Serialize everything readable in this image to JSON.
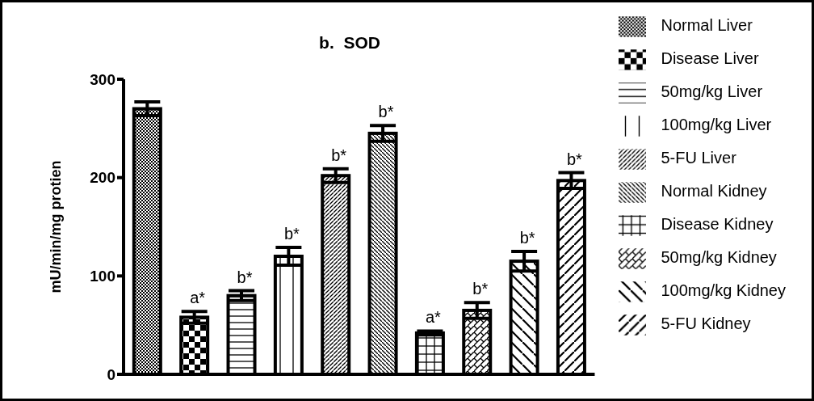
{
  "chart_data": {
    "type": "bar",
    "title": "b.  SOD",
    "ylabel": "mU/min/mg protien",
    "categories": [
      null,
      null,
      null,
      null,
      null,
      null,
      null,
      null,
      null,
      null
    ],
    "stacked": true,
    "ylim": [
      0,
      300
    ],
    "yticks": [
      0,
      100,
      200,
      300
    ],
    "grid": false,
    "legend": "right",
    "series": [
      {
        "name": "Normal Liver",
        "color": "#000000",
        "values": [
          270,
          null,
          null,
          null,
          null,
          null,
          null,
          null,
          null,
          null
        ],
        "errors": [
          7,
          null,
          null,
          null,
          null,
          null,
          null,
          null,
          null,
          null
        ],
        "value_labels": [
          null,
          null,
          null,
          null,
          null,
          null,
          null,
          null,
          null,
          null
        ]
      },
      {
        "name": "Disease Liver",
        "color": "#000000",
        "values": [
          null,
          58,
          null,
          null,
          null,
          null,
          null,
          null,
          null,
          null
        ],
        "errors": [
          null,
          6,
          null,
          null,
          null,
          null,
          null,
          null,
          null,
          null
        ],
        "value_labels": [
          null,
          "a*",
          null,
          null,
          null,
          null,
          null,
          null,
          null,
          null
        ]
      },
      {
        "name": "50mg/kg Liver",
        "color": "#000000",
        "values": [
          null,
          null,
          80,
          null,
          null,
          null,
          null,
          null,
          null,
          null
        ],
        "errors": [
          null,
          null,
          5,
          null,
          null,
          null,
          null,
          null,
          null,
          null
        ],
        "value_labels": [
          null,
          null,
          "b*",
          null,
          null,
          null,
          null,
          null,
          null,
          null
        ]
      },
      {
        "name": "100mg/kg Liver",
        "color": "#000000",
        "values": [
          null,
          null,
          null,
          120,
          null,
          null,
          null,
          null,
          null,
          null
        ],
        "errors": [
          null,
          null,
          null,
          9,
          null,
          null,
          null,
          null,
          null,
          null
        ],
        "value_labels": [
          null,
          null,
          null,
          "b*",
          null,
          null,
          null,
          null,
          null,
          null
        ]
      },
      {
        "name": "5-FU Liver",
        "color": "#000000",
        "values": [
          null,
          null,
          null,
          null,
          202,
          null,
          null,
          null,
          null,
          null
        ],
        "errors": [
          null,
          null,
          null,
          null,
          7,
          null,
          null,
          null,
          null,
          null
        ],
        "value_labels": [
          null,
          null,
          null,
          null,
          "b*",
          null,
          null,
          null,
          null,
          null
        ]
      },
      {
        "name": "Normal Kidney",
        "color": "#000000",
        "values": [
          null,
          null,
          null,
          null,
          null,
          245,
          null,
          null,
          null,
          null
        ],
        "errors": [
          null,
          null,
          null,
          null,
          null,
          8,
          null,
          null,
          null,
          null
        ],
        "value_labels": [
          null,
          null,
          null,
          null,
          null,
          "b*",
          null,
          null,
          null,
          null
        ]
      },
      {
        "name": "Disease Kidney",
        "color": "#000000",
        "values": [
          null,
          null,
          null,
          null,
          null,
          null,
          42,
          null,
          null,
          null
        ],
        "errors": [
          null,
          null,
          null,
          null,
          null,
          null,
          2,
          null,
          null,
          null
        ],
        "value_labels": [
          null,
          null,
          null,
          null,
          null,
          null,
          "a*",
          null,
          null,
          null
        ]
      },
      {
        "name": "50mg/kg Kidney",
        "color": "#000000",
        "values": [
          null,
          null,
          null,
          null,
          null,
          null,
          null,
          65,
          null,
          null
        ],
        "errors": [
          null,
          null,
          null,
          null,
          null,
          null,
          null,
          8,
          null,
          null
        ],
        "value_labels": [
          null,
          null,
          null,
          null,
          null,
          null,
          null,
          "b*",
          null,
          null
        ]
      },
      {
        "name": "100mg/kg Kidney",
        "color": "#000000",
        "values": [
          null,
          null,
          null,
          null,
          null,
          null,
          null,
          null,
          115,
          null
        ],
        "errors": [
          null,
          null,
          null,
          null,
          null,
          null,
          null,
          null,
          10,
          null
        ],
        "value_labels": [
          null,
          null,
          null,
          null,
          null,
          null,
          null,
          null,
          "b*",
          null
        ]
      },
      {
        "name": "5-FU Kidney",
        "color": "#000000",
        "values": [
          null,
          null,
          null,
          null,
          null,
          null,
          null,
          null,
          null,
          197
        ],
        "errors": [
          null,
          null,
          null,
          null,
          null,
          null,
          null,
          null,
          null,
          8
        ],
        "value_labels": [
          null,
          null,
          null,
          null,
          null,
          null,
          null,
          null,
          null,
          "b*"
        ]
      }
    ]
  }
}
